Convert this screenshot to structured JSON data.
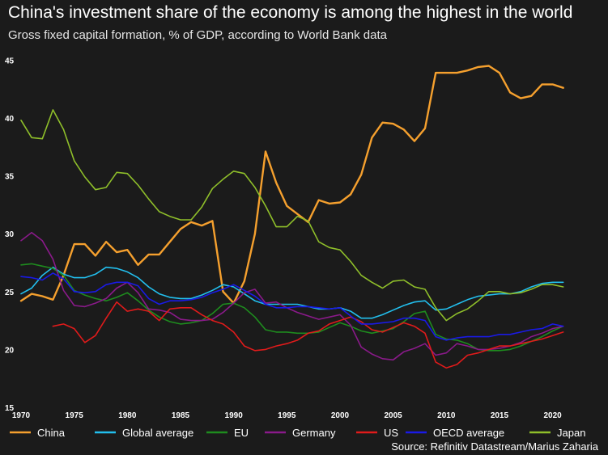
{
  "colors": {
    "background": "#1b1b1b",
    "China": "#f5a02e",
    "Global average": "#22bfee",
    "EU": "#1e8c1e",
    "Germany": "#8a1a8a",
    "US": "#e01b1b",
    "OECD average": "#1a1ae6",
    "Japan": "#8fbf2a"
  },
  "chart_data": {
    "type": "line",
    "title": "China's investment share of the economy is among the highest in the world",
    "subtitle": "Gross fixed capital formation, % of GDP, according to World Bank data",
    "source": "Source: Refinitiv Datastream/Marius Zaharia",
    "xlim": [
      1970,
      2023
    ],
    "ylim": [
      15,
      46
    ],
    "x_ticks": [
      1970,
      1975,
      1980,
      1985,
      1990,
      1995,
      2000,
      2005,
      2010,
      2015,
      2020
    ],
    "y_ticks": [
      15,
      20,
      25,
      30,
      35,
      40,
      45
    ],
    "grid": false,
    "legend_position": "bottom",
    "series": [
      {
        "name": "China",
        "x": [
          1970,
          1971,
          1972,
          1973,
          1974,
          1975,
          1976,
          1977,
          1978,
          1979,
          1980,
          1981,
          1982,
          1983,
          1984,
          1985,
          1986,
          1987,
          1988,
          1989,
          1990,
          1991,
          1992,
          1993,
          1994,
          1995,
          1996,
          1997,
          1998,
          1999,
          2000,
          2001,
          2002,
          2003,
          2004,
          2005,
          2006,
          2007,
          2008,
          2009,
          2010,
          2011,
          2012,
          2013,
          2014,
          2015,
          2016,
          2017,
          2018,
          2019,
          2020,
          2021
        ],
        "values": [
          24.2,
          24.8,
          24.6,
          24.3,
          26.4,
          29.1,
          29.1,
          28.1,
          29.3,
          28.4,
          28.6,
          27.3,
          28.2,
          28.2,
          29.3,
          30.4,
          31.0,
          30.7,
          31.1,
          25.0,
          24.0,
          25.9,
          30.0,
          37.1,
          34.4,
          32.4,
          31.7,
          31.0,
          32.9,
          32.6,
          32.7,
          33.4,
          35.1,
          38.3,
          39.6,
          39.5,
          39.0,
          38.0,
          39.1,
          43.9,
          43.9,
          43.9,
          44.1,
          44.4,
          44.5,
          43.9,
          42.2,
          41.7,
          41.9,
          42.9,
          42.9,
          42.6
        ]
      },
      {
        "name": "Global average",
        "x": [
          1970,
          1971,
          1972,
          1973,
          1974,
          1975,
          1976,
          1977,
          1978,
          1979,
          1980,
          1981,
          1982,
          1983,
          1984,
          1985,
          1986,
          1987,
          1988,
          1989,
          1990,
          1991,
          1992,
          1993,
          1994,
          1995,
          1996,
          1997,
          1998,
          1999,
          2000,
          2001,
          2002,
          2003,
          2004,
          2005,
          2006,
          2007,
          2008,
          2009,
          2010,
          2011,
          2012,
          2013,
          2014,
          2015,
          2016,
          2017,
          2018,
          2019,
          2020,
          2021
        ],
        "values": [
          24.8,
          25.3,
          26.4,
          27.1,
          26.5,
          26.2,
          26.2,
          26.5,
          27.1,
          27.0,
          26.7,
          26.2,
          25.4,
          24.8,
          24.5,
          24.4,
          24.4,
          24.7,
          25.1,
          25.6,
          25.4,
          24.8,
          24.2,
          23.9,
          23.9,
          23.9,
          23.9,
          23.7,
          23.5,
          23.5,
          23.6,
          23.3,
          22.7,
          22.7,
          23.0,
          23.4,
          23.8,
          24.1,
          24.2,
          23.4,
          23.5,
          23.9,
          24.3,
          24.6,
          24.7,
          24.8,
          24.8,
          25.0,
          25.4,
          25.7,
          25.8,
          25.8
        ]
      },
      {
        "name": "EU",
        "x": [
          1970,
          1971,
          1972,
          1973,
          1974,
          1975,
          1976,
          1977,
          1978,
          1979,
          1980,
          1981,
          1982,
          1983,
          1984,
          1985,
          1986,
          1987,
          1988,
          1989,
          1990,
          1991,
          1992,
          1993,
          1994,
          1995,
          1996,
          1997,
          1998,
          1999,
          2000,
          2001,
          2002,
          2003,
          2004,
          2005,
          2006,
          2007,
          2008,
          2009,
          2010,
          2011,
          2012,
          2013,
          2014,
          2015,
          2016,
          2017,
          2018,
          2019,
          2020,
          2021
        ],
        "values": [
          27.3,
          27.4,
          27.2,
          27.0,
          26.4,
          25.1,
          24.7,
          24.4,
          24.2,
          24.5,
          24.9,
          24.2,
          23.4,
          22.8,
          22.4,
          22.2,
          22.3,
          22.5,
          23.1,
          23.9,
          24.0,
          23.6,
          22.8,
          21.7,
          21.5,
          21.5,
          21.4,
          21.4,
          21.5,
          21.9,
          22.3,
          22.0,
          21.6,
          21.4,
          21.6,
          21.8,
          22.4,
          23.1,
          23.3,
          21.3,
          20.9,
          20.8,
          20.5,
          20.0,
          19.9,
          19.9,
          20.0,
          20.3,
          20.7,
          21.1,
          21.6,
          22.0
        ]
      },
      {
        "name": "Germany",
        "x": [
          1970,
          1971,
          1972,
          1973,
          1974,
          1975,
          1976,
          1977,
          1978,
          1979,
          1980,
          1981,
          1982,
          1983,
          1984,
          1985,
          1986,
          1987,
          1988,
          1989,
          1990,
          1991,
          1992,
          1993,
          1994,
          1995,
          1996,
          1997,
          1998,
          1999,
          2000,
          2001,
          2002,
          2003,
          2004,
          2005,
          2006,
          2007,
          2008,
          2009,
          2010,
          2011,
          2012,
          2013,
          2014,
          2015,
          2016,
          2017,
          2018,
          2019,
          2020,
          2021
        ],
        "values": [
          29.4,
          30.1,
          29.4,
          27.8,
          25.1,
          23.8,
          23.7,
          24.0,
          24.4,
          25.3,
          25.8,
          24.9,
          23.5,
          23.4,
          23.2,
          22.6,
          22.5,
          22.5,
          22.6,
          23.2,
          24.0,
          24.9,
          25.2,
          24.0,
          24.1,
          23.6,
          23.2,
          22.9,
          22.6,
          22.8,
          23.0,
          22.1,
          20.2,
          19.6,
          19.2,
          19.1,
          19.8,
          20.1,
          20.5,
          19.5,
          19.7,
          20.5,
          20.3,
          20.0,
          20.0,
          20.1,
          20.3,
          20.6,
          21.1,
          21.4,
          21.8,
          22.0
        ]
      },
      {
        "name": "US",
        "x": [
          1973,
          1974,
          1975,
          1976,
          1977,
          1978,
          1979,
          1980,
          1981,
          1982,
          1983,
          1984,
          1985,
          1986,
          1987,
          1988,
          1989,
          1990,
          1991,
          1992,
          1993,
          1994,
          1995,
          1996,
          1997,
          1998,
          1999,
          2000,
          2001,
          2002,
          2003,
          2004,
          2005,
          2006,
          2007,
          2008,
          2009,
          2010,
          2011,
          2012,
          2013,
          2014,
          2015,
          2016,
          2017,
          2018,
          2019,
          2020,
          2021
        ],
        "values": [
          22.0,
          22.2,
          21.8,
          20.6,
          21.2,
          22.7,
          24.1,
          23.3,
          23.5,
          23.3,
          22.5,
          23.5,
          23.6,
          23.6,
          23.0,
          22.5,
          22.2,
          21.5,
          20.3,
          19.9,
          20.0,
          20.3,
          20.5,
          20.8,
          21.4,
          21.6,
          22.2,
          22.5,
          22.8,
          22.4,
          21.7,
          21.5,
          21.9,
          22.3,
          22.0,
          21.4,
          18.9,
          18.4,
          18.7,
          19.5,
          19.7,
          20.0,
          20.3,
          20.3,
          20.5,
          20.7,
          20.9,
          21.2,
          21.5
        ]
      },
      {
        "name": "OECD average",
        "x": [
          1970,
          1971,
          1972,
          1973,
          1974,
          1975,
          1976,
          1977,
          1978,
          1979,
          1980,
          1981,
          1982,
          1983,
          1984,
          1985,
          1986,
          1987,
          1988,
          1989,
          1990,
          1991,
          1992,
          1993,
          1994,
          1995,
          1996,
          1997,
          1998,
          1999,
          2000,
          2001,
          2002,
          2003,
          2004,
          2005,
          2006,
          2007,
          2008,
          2009,
          2010,
          2011,
          2012,
          2013,
          2014,
          2015,
          2016,
          2017,
          2018,
          2019,
          2020,
          2021
        ],
        "values": [
          26.3,
          26.2,
          26.0,
          26.6,
          26.1,
          25.0,
          24.9,
          25.0,
          25.6,
          25.8,
          25.8,
          25.5,
          24.4,
          23.9,
          24.2,
          24.2,
          24.3,
          24.5,
          24.9,
          25.2,
          25.6,
          25.1,
          24.6,
          23.9,
          23.6,
          23.6,
          23.7,
          23.7,
          23.6,
          23.5,
          23.6,
          22.9,
          22.2,
          22.2,
          22.3,
          22.4,
          22.7,
          22.7,
          22.5,
          21.1,
          20.8,
          21.0,
          21.1,
          21.1,
          21.1,
          21.3,
          21.3,
          21.5,
          21.7,
          21.8,
          22.2,
          22.0
        ]
      },
      {
        "name": "Japan",
        "x": [
          1970,
          1971,
          1972,
          1973,
          1974,
          1975,
          1976,
          1977,
          1978,
          1979,
          1980,
          1981,
          1982,
          1983,
          1984,
          1985,
          1986,
          1987,
          1988,
          1989,
          1990,
          1991,
          1992,
          1993,
          1994,
          1995,
          1996,
          1997,
          1998,
          1999,
          2000,
          2001,
          2002,
          2003,
          2004,
          2005,
          2006,
          2007,
          2008,
          2009,
          2010,
          2011,
          2012,
          2013,
          2014,
          2015,
          2016,
          2017,
          2018,
          2019,
          2020,
          2021
        ],
        "values": [
          39.8,
          38.3,
          38.2,
          40.7,
          39.0,
          36.3,
          34.9,
          33.8,
          34.0,
          35.3,
          35.2,
          34.2,
          33.0,
          31.9,
          31.5,
          31.2,
          31.2,
          32.3,
          33.9,
          34.7,
          35.4,
          35.2,
          34.0,
          32.4,
          30.6,
          30.6,
          31.5,
          31.1,
          29.3,
          28.8,
          28.6,
          27.6,
          26.4,
          25.8,
          25.3,
          25.9,
          26.0,
          25.4,
          25.2,
          23.6,
          22.5,
          23.1,
          23.5,
          24.2,
          25.0,
          25.0,
          24.8,
          24.9,
          25.2,
          25.6,
          25.6,
          25.4
        ]
      }
    ]
  }
}
